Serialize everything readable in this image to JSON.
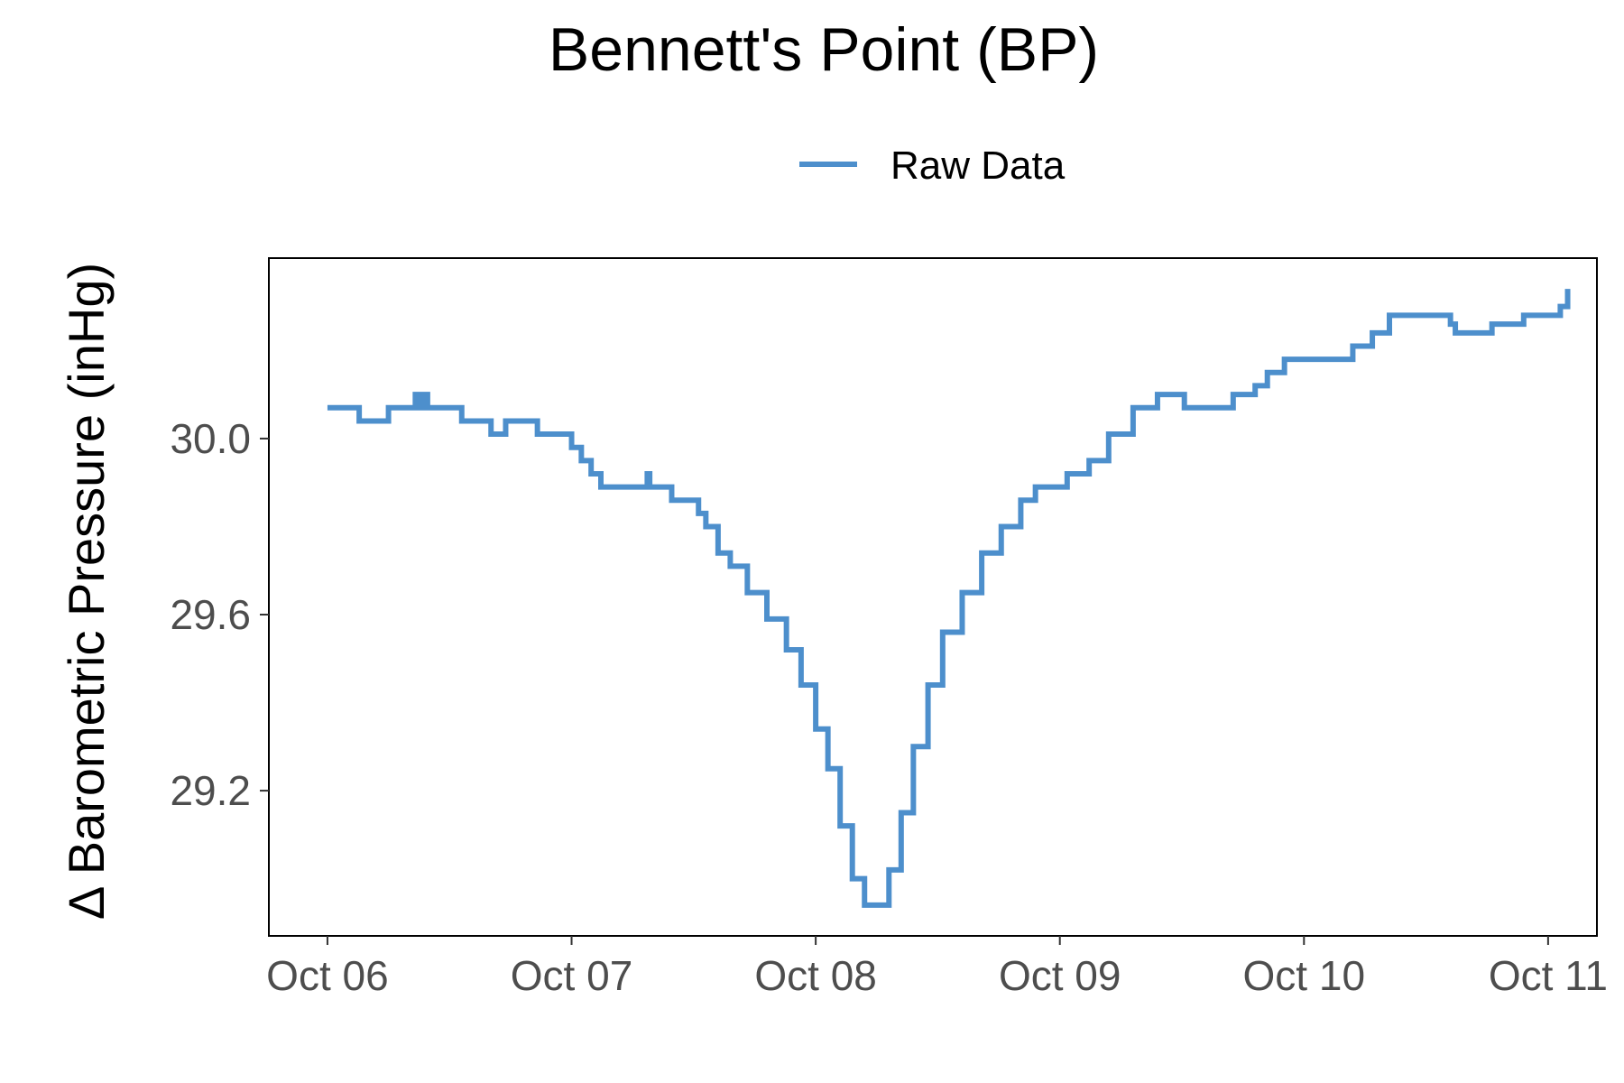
{
  "chart_data": {
    "type": "line",
    "title": "Bennett's Point (BP)",
    "ylabel": "Δ Barometric Pressure (inHg)",
    "xlabel": "",
    "legend": {
      "position": "top",
      "entries": [
        "Raw Data"
      ]
    },
    "grid": false,
    "x_ticks": [
      "Oct 06",
      "Oct 07",
      "Oct 08",
      "Oct 09",
      "Oct 10",
      "Oct 11"
    ],
    "y_ticks": [
      "29.2",
      "29.6",
      "30.0"
    ],
    "xlim": [
      -0.24,
      5.2
    ],
    "ylim": [
      28.87,
      30.41
    ],
    "series": [
      {
        "name": "Raw Data",
        "color": "#4d8fcc",
        "x_unit": "days since Oct 06",
        "points": [
          [
            0.0,
            30.07
          ],
          [
            0.12,
            30.07
          ],
          [
            0.13,
            30.04
          ],
          [
            0.24,
            30.04
          ],
          [
            0.25,
            30.07
          ],
          [
            0.35,
            30.07
          ],
          [
            0.36,
            30.1
          ],
          [
            0.37,
            30.07
          ],
          [
            0.38,
            30.1
          ],
          [
            0.39,
            30.07
          ],
          [
            0.4,
            30.1
          ],
          [
            0.41,
            30.07
          ],
          [
            0.54,
            30.07
          ],
          [
            0.55,
            30.04
          ],
          [
            0.66,
            30.04
          ],
          [
            0.67,
            30.01
          ],
          [
            0.72,
            30.01
          ],
          [
            0.73,
            30.04
          ],
          [
            0.85,
            30.04
          ],
          [
            0.86,
            30.01
          ],
          [
            0.98,
            30.01
          ],
          [
            1.0,
            29.98
          ],
          [
            1.04,
            29.95
          ],
          [
            1.08,
            29.92
          ],
          [
            1.12,
            29.89
          ],
          [
            1.3,
            29.89
          ],
          [
            1.31,
            29.92
          ],
          [
            1.32,
            29.89
          ],
          [
            1.4,
            29.89
          ],
          [
            1.41,
            29.86
          ],
          [
            1.48,
            29.86
          ],
          [
            1.52,
            29.83
          ],
          [
            1.55,
            29.8
          ],
          [
            1.6,
            29.74
          ],
          [
            1.65,
            29.71
          ],
          [
            1.72,
            29.65
          ],
          [
            1.8,
            29.59
          ],
          [
            1.88,
            29.52
          ],
          [
            1.94,
            29.44
          ],
          [
            2.0,
            29.34
          ],
          [
            2.05,
            29.25
          ],
          [
            2.1,
            29.12
          ],
          [
            2.15,
            29.0
          ],
          [
            2.2,
            28.94
          ],
          [
            2.27,
            28.94
          ],
          [
            2.3,
            29.02
          ],
          [
            2.35,
            29.15
          ],
          [
            2.4,
            29.3
          ],
          [
            2.46,
            29.44
          ],
          [
            2.52,
            29.56
          ],
          [
            2.6,
            29.65
          ],
          [
            2.68,
            29.74
          ],
          [
            2.76,
            29.8
          ],
          [
            2.84,
            29.86
          ],
          [
            2.9,
            29.89
          ],
          [
            3.02,
            29.89
          ],
          [
            3.03,
            29.92
          ],
          [
            3.12,
            29.95
          ],
          [
            3.2,
            30.01
          ],
          [
            3.3,
            30.07
          ],
          [
            3.4,
            30.1
          ],
          [
            3.5,
            30.1
          ],
          [
            3.51,
            30.07
          ],
          [
            3.7,
            30.07
          ],
          [
            3.71,
            30.1
          ],
          [
            3.8,
            30.12
          ],
          [
            3.85,
            30.15
          ],
          [
            3.92,
            30.18
          ],
          [
            4.15,
            30.18
          ],
          [
            4.2,
            30.21
          ],
          [
            4.28,
            30.24
          ],
          [
            4.35,
            30.28
          ],
          [
            4.55,
            30.28
          ],
          [
            4.6,
            30.26
          ],
          [
            4.62,
            30.24
          ],
          [
            4.75,
            30.24
          ],
          [
            4.77,
            30.26
          ],
          [
            4.88,
            30.26
          ],
          [
            4.9,
            30.28
          ],
          [
            5.03,
            30.28
          ],
          [
            5.05,
            30.3
          ],
          [
            5.08,
            30.34
          ]
        ]
      }
    ]
  }
}
